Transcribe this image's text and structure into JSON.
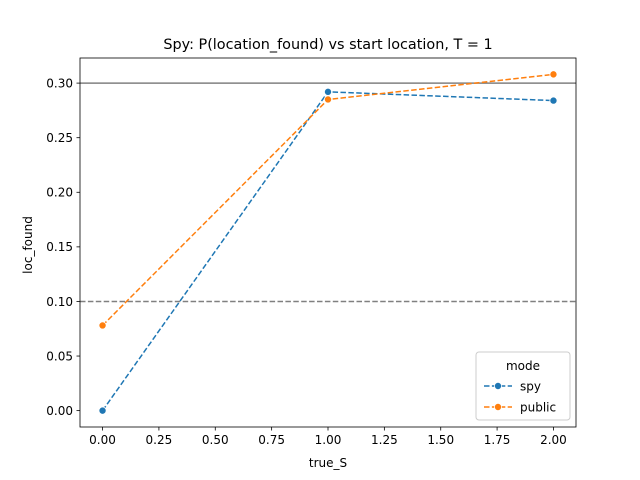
{
  "chart_data": {
    "type": "line",
    "title": "Spy: P(location_found) vs start location, T = 1",
    "xlabel": "true_S",
    "ylabel": "loc_found",
    "x": [
      0,
      1,
      2
    ],
    "series": [
      {
        "name": "spy",
        "values": [
          0.0,
          0.292,
          0.284
        ],
        "color": "#1f77b4",
        "linestyle": "dashed",
        "marker": "o"
      },
      {
        "name": "public",
        "values": [
          0.078,
          0.285,
          0.308
        ],
        "color": "#ff7f0e",
        "linestyle": "dashed",
        "marker": "o"
      }
    ],
    "xlim": [
      -0.1,
      2.1
    ],
    "ylim": [
      -0.015,
      0.323
    ],
    "xticks": [
      0.0,
      0.25,
      0.5,
      0.75,
      1.0,
      1.25,
      1.5,
      1.75,
      2.0
    ],
    "xtick_labels": [
      "0.00",
      "0.25",
      "0.50",
      "0.75",
      "1.00",
      "1.25",
      "1.50",
      "1.75",
      "2.00"
    ],
    "yticks": [
      0.0,
      0.05,
      0.1,
      0.15,
      0.2,
      0.25,
      0.3
    ],
    "ytick_labels": [
      "0.00",
      "0.05",
      "0.10",
      "0.15",
      "0.20",
      "0.25",
      "0.30"
    ],
    "reference_lines": [
      {
        "y": 0.3,
        "style": "solid",
        "color": "#808080"
      },
      {
        "y": 0.1,
        "style": "dashed",
        "color": "#808080"
      }
    ],
    "legend": {
      "title": "mode",
      "position": "lower-right"
    },
    "grid": false
  }
}
